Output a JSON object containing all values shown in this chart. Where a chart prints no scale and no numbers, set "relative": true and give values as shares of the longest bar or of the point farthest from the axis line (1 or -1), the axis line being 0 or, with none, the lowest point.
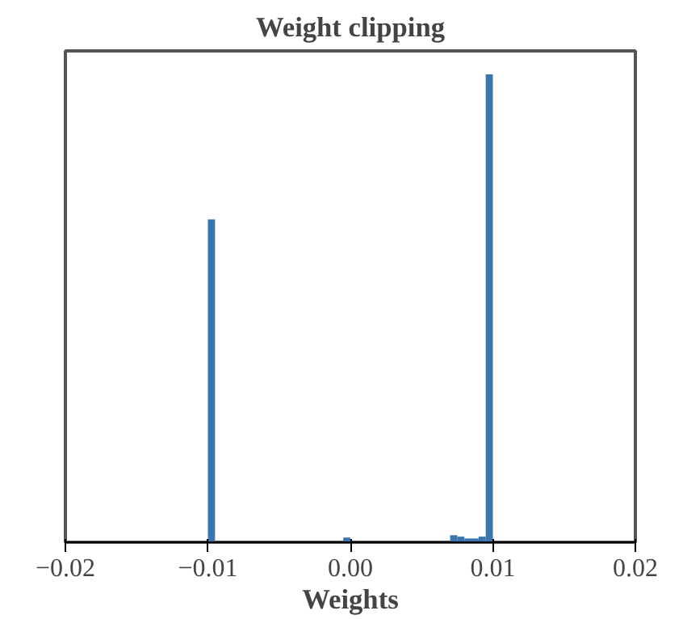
{
  "chart_data": {
    "type": "bar",
    "title": "Weight clipping",
    "xlabel": "Weights",
    "relative": true,
    "color": "#3a75b0",
    "x": [
      -0.00975,
      -0.00025,
      0.00725,
      0.00775,
      0.00825,
      0.00875,
      0.00925,
      0.00975
    ],
    "values": [
      0.69,
      0.01,
      0.015,
      0.012,
      0.008,
      0.008,
      0.012,
      1
    ],
    "xlim": [
      -0.02,
      0.02
    ],
    "xticks": [
      {
        "value": -0.02,
        "label": "−0.02"
      },
      {
        "value": -0.01,
        "label": "−0.01"
      },
      {
        "value": 0,
        "label": "0.00"
      },
      {
        "value": 0.01,
        "label": "0.01"
      },
      {
        "value": 0.02,
        "label": "0.02"
      }
    ],
    "tick_labels": "x"
  }
}
